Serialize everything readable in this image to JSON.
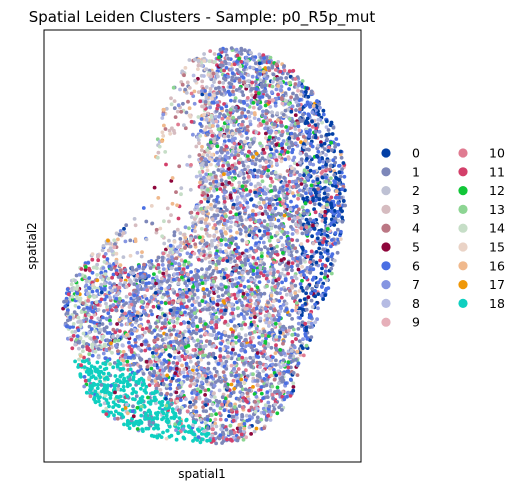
{
  "chart_data": {
    "type": "scatter",
    "title": "Spatial Leiden Clusters - Sample: p0_R5p_mut",
    "xlabel": "spatial1",
    "ylabel": "spatial2",
    "xticks": [],
    "yticks": [],
    "grid": false,
    "legend_position": "right-outside",
    "legend_columns": 2,
    "series": [
      {
        "name": "0",
        "color": "#023fa5"
      },
      {
        "name": "1",
        "color": "#7d87b9"
      },
      {
        "name": "2",
        "color": "#bec1d4"
      },
      {
        "name": "3",
        "color": "#d6bcc0"
      },
      {
        "name": "4",
        "color": "#bb7784"
      },
      {
        "name": "5",
        "color": "#8e063b"
      },
      {
        "name": "6",
        "color": "#4a6fe3"
      },
      {
        "name": "7",
        "color": "#8595e1"
      },
      {
        "name": "8",
        "color": "#b5bbe3"
      },
      {
        "name": "9",
        "color": "#e6afb9"
      },
      {
        "name": "10",
        "color": "#e07b91"
      },
      {
        "name": "11",
        "color": "#d33f6a"
      },
      {
        "name": "12",
        "color": "#11c638"
      },
      {
        "name": "13",
        "color": "#8dd593"
      },
      {
        "name": "14",
        "color": "#c6dec7"
      },
      {
        "name": "15",
        "color": "#ead3c6"
      },
      {
        "name": "16",
        "color": "#f0b98d"
      },
      {
        "name": "17",
        "color": "#ef9708"
      },
      {
        "name": "18",
        "color": "#0fcfc0"
      }
    ]
  }
}
